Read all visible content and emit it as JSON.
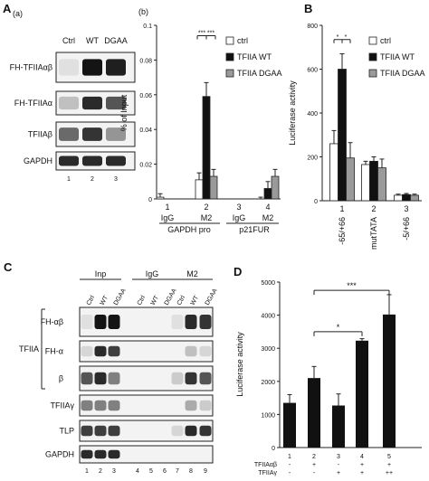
{
  "panelA": {
    "letter": "A",
    "sublabel": "(a)",
    "lanes": [
      "Ctrl",
      "WT",
      "DGAA"
    ],
    "lane_numbers": [
      "1",
      "2",
      "3"
    ],
    "rows": [
      {
        "label": "FH-TFIIAαβ",
        "levels": [
          0.05,
          1.0,
          0.95
        ]
      },
      {
        "label": "FH-TFIIAα",
        "levels": [
          0.2,
          0.9,
          0.7
        ]
      },
      {
        "label": "TFIIAβ",
        "levels": [
          0.6,
          0.85,
          0.4
        ]
      },
      {
        "label": "GAPDH",
        "levels": [
          0.9,
          0.9,
          0.9
        ]
      }
    ]
  },
  "panelC": {
    "letter": "C",
    "groups": [
      "Inp",
      "IgG",
      "M2"
    ],
    "lanes": [
      "Ctrl",
      "WT",
      "DGAA",
      "Ctrl",
      "WT",
      "DGAA",
      "Ctrl",
      "WT",
      "DGAA"
    ],
    "lane_numbers": [
      "1",
      "2",
      "3",
      "4",
      "5",
      "6",
      "7",
      "8",
      "9"
    ],
    "tfiia_label": "TFIIA",
    "rows": [
      {
        "label": "FH-αβ",
        "levels": [
          0.05,
          1,
          1,
          0,
          0,
          0,
          0.05,
          0.9,
          0.85
        ]
      },
      {
        "label": "FH-α",
        "levels": [
          0.1,
          0.9,
          0.8,
          0,
          0,
          0,
          0,
          0.2,
          0.1
        ]
      },
      {
        "label": "β",
        "levels": [
          0.7,
          0.9,
          0.5,
          0,
          0,
          0,
          0.15,
          0.85,
          0.7
        ]
      },
      {
        "label": "TFIIAγ",
        "levels": [
          0.5,
          0.5,
          0.5,
          0,
          0,
          0,
          0,
          0.3,
          0.15
        ]
      },
      {
        "label": "TLP",
        "levels": [
          0.8,
          0.8,
          0.8,
          0,
          0,
          0,
          0.1,
          0.9,
          0.85
        ]
      },
      {
        "label": "GAPDH",
        "levels": [
          0.9,
          0.9,
          0.9,
          0,
          0,
          0,
          0,
          0,
          0
        ]
      }
    ]
  },
  "colors": {
    "ctrl": "#ffffff",
    "wt": "#111111",
    "dgaa": "#9a9a9a",
    "bar_d": "#111111"
  },
  "chart_data": [
    {
      "panel": "(b)",
      "type": "bar",
      "ylabel": "% of Input",
      "ylim": [
        0,
        0.1
      ],
      "yticks": [
        "0",
        "0.02",
        "0.04",
        "0.06",
        "0.08",
        "0.1"
      ],
      "ytick_values": [
        0,
        0.02,
        0.04,
        0.06,
        0.08,
        0.1
      ],
      "groups": [
        {
          "num": "1",
          "label": "IgG"
        },
        {
          "num": "2",
          "label": "M2"
        },
        {
          "num": "3",
          "label": "IgG"
        },
        {
          "num": "4",
          "label": "M2"
        }
      ],
      "group_labels": [
        "GAPDH pro",
        "p21FUR"
      ],
      "series": [
        {
          "name": "ctrl",
          "values": [
            0.001,
            0.011,
            0.0,
            0.0
          ],
          "errors": [
            0.002,
            0.004,
            0.0,
            0.001
          ]
        },
        {
          "name": "TFIIA WT",
          "values": [
            0.0,
            0.059,
            0.0,
            0.006
          ],
          "errors": [
            0.0,
            0.008,
            0.0,
            0.004
          ]
        },
        {
          "name": "TFIIA DGAA",
          "values": [
            0.0,
            0.013,
            0.0,
            0.013
          ],
          "errors": [
            0.0,
            0.004,
            0.0,
            0.004
          ]
        }
      ],
      "significance": [
        "***",
        "***"
      ],
      "legend": "top-right"
    },
    {
      "panel": "B",
      "type": "bar",
      "ylabel": "Luciferase activity",
      "ylim": [
        0,
        800
      ],
      "yticks": [
        "0",
        "200",
        "400",
        "600",
        "800"
      ],
      "ytick_values": [
        0,
        200,
        400,
        600,
        800
      ],
      "categories": [
        "-65/+66",
        "mutTATA",
        "-5/+66"
      ],
      "category_numbers": [
        "1",
        "2",
        "3"
      ],
      "series": [
        {
          "name": "ctrl",
          "values": [
            260,
            165,
            25
          ],
          "errors": [
            60,
            15,
            5
          ]
        },
        {
          "name": "TFIIA WT",
          "values": [
            600,
            180,
            28
          ],
          "errors": [
            70,
            20,
            5
          ]
        },
        {
          "name": "TFIIA DGAA",
          "values": [
            195,
            150,
            25
          ],
          "errors": [
            70,
            40,
            5
          ]
        }
      ],
      "significance": [
        "*",
        "*"
      ],
      "legend": "top-right"
    },
    {
      "panel": "D",
      "type": "bar",
      "ylabel": "Luciferase activity",
      "ylim": [
        0,
        5000
      ],
      "yticks": [
        "0",
        "1000",
        "2000",
        "3000",
        "4000",
        "5000"
      ],
      "ytick_values": [
        0,
        1000,
        2000,
        3000,
        4000,
        5000
      ],
      "categories": [
        "1",
        "2",
        "3",
        "4",
        "5"
      ],
      "values": [
        1350,
        2100,
        1270,
        3230,
        4020
      ],
      "errors": [
        250,
        350,
        350,
        60,
        600
      ],
      "rows": [
        {
          "label": "TFIIAαβ",
          "values": [
            "-",
            "+",
            "-",
            "+",
            "+"
          ]
        },
        {
          "label": "TFIIAγ",
          "values": [
            "-",
            "-",
            "+",
            "+",
            "++"
          ]
        }
      ],
      "significance": [
        {
          "from": "2",
          "to": "4",
          "label": "*"
        },
        {
          "from": "2",
          "to": "5",
          "label": "***"
        }
      ]
    }
  ]
}
